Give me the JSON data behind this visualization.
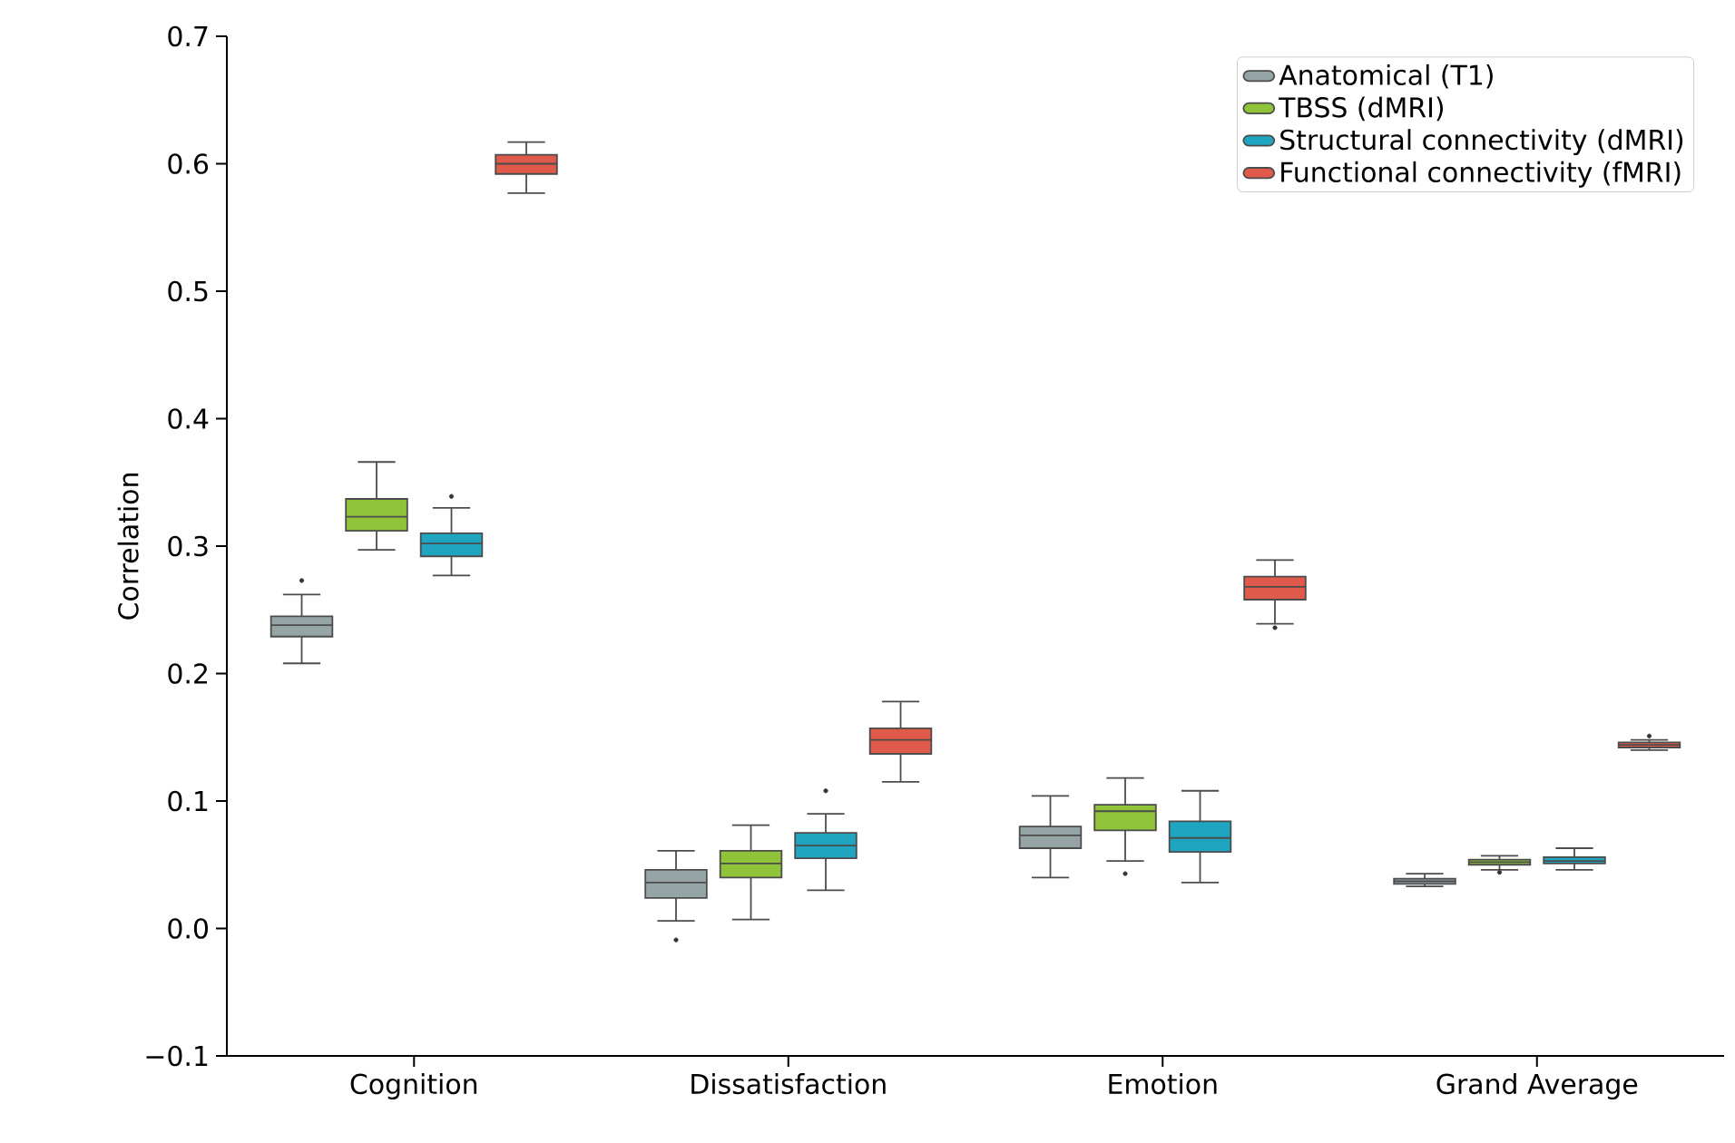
{
  "chart_data": {
    "type": "box",
    "ylabel": "Correlation",
    "categories": [
      "Cognition",
      "Dissatisfaction",
      "Emotion",
      "Grand Average"
    ],
    "ylim": [
      -0.1,
      0.7
    ],
    "yticks": [
      {
        "value": -0.1,
        "label": "−0.1"
      },
      {
        "value": 0,
        "label": "0.0"
      },
      0.1,
      0.2,
      0.3,
      0.4,
      0.5,
      0.6,
      0.7
    ],
    "legend": "top right",
    "grid": false,
    "series": [
      {
        "name": "Anatomical (T1)",
        "color": "#95a5a6",
        "boxes": [
          {
            "low": 0.208,
            "q1": 0.229,
            "median": 0.238,
            "q3": 0.245,
            "high": 0.262,
            "outliers": [
              0.273
            ]
          },
          {
            "low": 0.006,
            "q1": 0.024,
            "median": 0.036,
            "q3": 0.046,
            "high": 0.061,
            "outliers": [
              -0.009
            ]
          },
          {
            "low": 0.04,
            "q1": 0.063,
            "median": 0.073,
            "q3": 0.08,
            "high": 0.104
          },
          {
            "low": 0.033,
            "q1": 0.035,
            "median": 0.037,
            "q3": 0.039,
            "high": 0.043
          }
        ]
      },
      {
        "name": "TBSS (dMRI)",
        "color": "#8fc33a",
        "boxes": [
          {
            "low": 0.297,
            "q1": 0.312,
            "median": 0.323,
            "q3": 0.337,
            "high": 0.366
          },
          {
            "low": 0.007,
            "q1": 0.04,
            "median": 0.051,
            "q3": 0.061,
            "high": 0.081
          },
          {
            "low": 0.053,
            "q1": 0.077,
            "median": 0.092,
            "q3": 0.097,
            "high": 0.118,
            "outliers": [
              0.043
            ]
          },
          {
            "low": 0.046,
            "q1": 0.05,
            "median": 0.052,
            "q3": 0.054,
            "high": 0.057,
            "outliers": [
              0.044
            ]
          }
        ]
      },
      {
        "name": "Structural connectivity (dMRI)",
        "color": "#1fa5c0",
        "boxes": [
          {
            "low": 0.277,
            "q1": 0.292,
            "median": 0.302,
            "q3": 0.31,
            "high": 0.33,
            "outliers": [
              0.339
            ]
          },
          {
            "low": 0.03,
            "q1": 0.055,
            "median": 0.065,
            "q3": 0.075,
            "high": 0.09,
            "outliers": [
              0.108
            ]
          },
          {
            "low": 0.036,
            "q1": 0.06,
            "median": 0.071,
            "q3": 0.084,
            "high": 0.108
          },
          {
            "low": 0.046,
            "q1": 0.051,
            "median": 0.053,
            "q3": 0.056,
            "high": 0.063
          }
        ]
      },
      {
        "name": "Functional connectivity (fMRI)",
        "color": "#e05a4b",
        "boxes": [
          {
            "low": 0.577,
            "q1": 0.592,
            "median": 0.6,
            "q3": 0.607,
            "high": 0.617
          },
          {
            "low": 0.115,
            "q1": 0.137,
            "median": 0.148,
            "q3": 0.157,
            "high": 0.178
          },
          {
            "low": 0.239,
            "q1": 0.258,
            "median": 0.268,
            "q3": 0.276,
            "high": 0.289,
            "outliers": [
              0.236
            ]
          },
          {
            "low": 0.14,
            "q1": 0.142,
            "median": 0.144,
            "q3": 0.146,
            "high": 0.148,
            "outliers": [
              0.151
            ]
          }
        ]
      }
    ]
  }
}
